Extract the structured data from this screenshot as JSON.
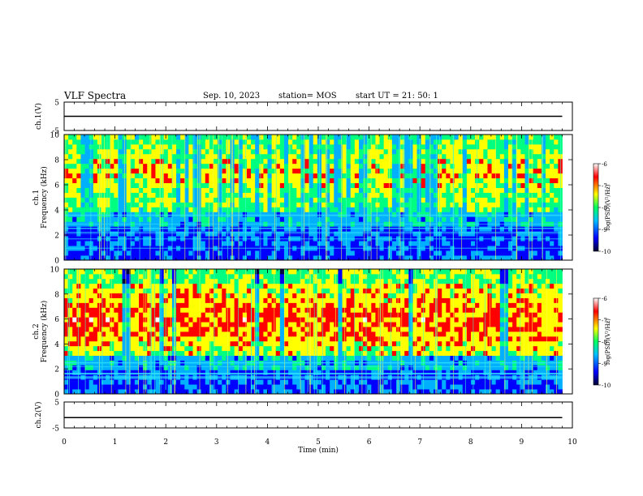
{
  "header": {
    "title": "VLF Spectra",
    "date": "Sep. 10, 2023",
    "station": "station= MOS",
    "start_ut": "start  UT =  21: 50: 1"
  },
  "chart_data": [
    {
      "type": "line",
      "id": "ch1-voltage",
      "ylabel": "ch.1(V)",
      "ylim": [
        -5,
        5
      ],
      "yticks": [
        "5",
        "-5"
      ],
      "xlim": [
        0,
        10
      ],
      "series": [
        {
          "x": [
            0,
            9.8
          ],
          "values": [
            0,
            0
          ]
        }
      ]
    },
    {
      "type": "heatmap",
      "id": "ch1-spectrogram",
      "ylabel": [
        "ch.1",
        "Frequency  (kHz)"
      ],
      "ylim": [
        0,
        10
      ],
      "yticks": [
        "0",
        "2",
        "4",
        "6",
        "8",
        "10"
      ],
      "xlim": [
        0,
        10
      ],
      "colorbar": {
        "label": "log(PSD)(V²/Hz)",
        "ticks": [
          "-6",
          "-7",
          "-8",
          "-9",
          "-10"
        ],
        "range": [
          -10,
          -6
        ]
      },
      "dominant_band_khz": [
        4,
        10
      ]
    },
    {
      "type": "heatmap",
      "id": "ch2-spectrogram",
      "ylabel": [
        "ch.2",
        "Frequency  (kHz)"
      ],
      "ylim": [
        0,
        10
      ],
      "yticks": [
        "0",
        "2",
        "4",
        "6",
        "8",
        "10"
      ],
      "xlim": [
        0,
        10
      ],
      "colorbar": {
        "label": "log(PSD)(V²/Hz)",
        "ticks": [
          "-6",
          "-7",
          "-8",
          "-9",
          "-10"
        ],
        "range": [
          -10,
          -6
        ]
      },
      "dominant_band_khz": [
        3,
        9
      ]
    },
    {
      "type": "line",
      "id": "ch2-voltage",
      "ylabel": "ch.2(V)",
      "ylim": [
        -5,
        5
      ],
      "yticks": [
        "5",
        "-5"
      ],
      "xlim": [
        0,
        10
      ],
      "xlabel": "Time  (min)",
      "xticks": [
        "0",
        "1",
        "2",
        "3",
        "4",
        "5",
        "6",
        "7",
        "8",
        "9",
        "10"
      ],
      "series": [
        {
          "x": [
            0,
            9.8
          ],
          "values": [
            -1,
            -1
          ]
        }
      ]
    }
  ],
  "colors": {
    "colormap": [
      "#000040",
      "#0000ff",
      "#00b0ff",
      "#00ff80",
      "#ffff00",
      "#ff0000",
      "#ffffff"
    ],
    "axis": "#000000"
  }
}
